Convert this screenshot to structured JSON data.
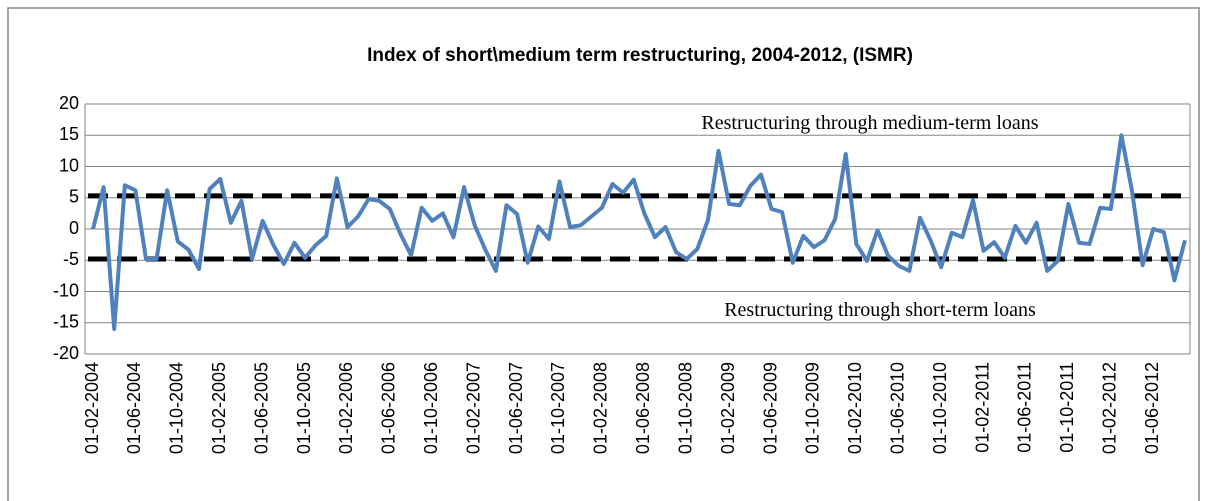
{
  "chart_data": {
    "type": "line",
    "title": "Index of short\\medium term restructuring, 2004-2012, (ISMR)",
    "categories": [
      "01-02-2004",
      null,
      null,
      null,
      "01-06-2004",
      null,
      null,
      null,
      "01-10-2004",
      null,
      null,
      null,
      "01-02-2005",
      null,
      null,
      null,
      "01-06-2005",
      null,
      null,
      null,
      "01-10-2005",
      null,
      null,
      null,
      "01-02-2006",
      null,
      null,
      null,
      "01-06-2006",
      null,
      null,
      null,
      "01-10-2006",
      null,
      null,
      null,
      "01-02-2007",
      null,
      null,
      null,
      "01-06-2007",
      null,
      null,
      null,
      "01-10-2007",
      null,
      null,
      null,
      "01-02-2008",
      null,
      null,
      null,
      "01-06-2008",
      null,
      null,
      null,
      "01-10-2008",
      null,
      null,
      null,
      "01-02-2009",
      null,
      null,
      null,
      "01-06-2009",
      null,
      null,
      null,
      "01-10-2009",
      null,
      null,
      null,
      "01-02-2010",
      null,
      null,
      null,
      "01-06-2010",
      null,
      null,
      null,
      "01-10-2010",
      null,
      null,
      null,
      "01-02-2011",
      null,
      null,
      null,
      "01-06-2011",
      null,
      null,
      null,
      "01-10-2011",
      null,
      null,
      null,
      "01-02-2012",
      null,
      null,
      null,
      "01-06-2012",
      null,
      null,
      null
    ],
    "series": [
      {
        "name": "ISMR",
        "color": "#4f81bd",
        "values": [
          0,
          6.7,
          -16,
          7,
          6.2,
          -4.8,
          -4.8,
          6.2,
          -2,
          -3.3,
          -6.4,
          6.4,
          8,
          1,
          4.5,
          -4.8,
          1.3,
          -2.5,
          -5.6,
          -2.2,
          -4.6,
          -2.6,
          -1.1,
          8.1,
          0.3,
          2,
          4.8,
          4.5,
          3.2,
          -0.8,
          -4.2,
          3.4,
          1.3,
          2.5,
          -1.3,
          6.7,
          0.6,
          -3.3,
          -6.7,
          3.8,
          2.4,
          -5.4,
          0.4,
          -1.6,
          7.6,
          0.3,
          0.6,
          2,
          3.4,
          7.2,
          5.8,
          7.9,
          2.5,
          -1.3,
          0.3,
          -3.7,
          -4.8,
          -3.2,
          1.4,
          12.5,
          4,
          3.8,
          6.9,
          8.7,
          3.2,
          2.7,
          -5.4,
          -1.1,
          -2.9,
          -1.8,
          1.6,
          12,
          -2.4,
          -5.1,
          -0.2,
          -4.3,
          -5.9,
          -6.7,
          1.8,
          -1.8,
          -6.1,
          -0.6,
          -1.3,
          4.6,
          -3.5,
          -2.1,
          -4.6,
          0.5,
          -2.2,
          1,
          -6.7,
          -5.1,
          4,
          -2.2,
          -2.4,
          3.4,
          3.2,
          15,
          6.1,
          -5.8,
          0,
          -0.5,
          -8.2,
          -1.8
        ]
      }
    ],
    "hlines": [
      5.3,
      -4.8
    ],
    "annotations": [
      "Restructuring through medium-term loans",
      "Restructuring through short-term loans"
    ],
    "ylim": [
      -20,
      20
    ],
    "yticks": [
      -20,
      -15,
      -10,
      -5,
      0,
      5,
      10,
      15,
      20
    ],
    "grid": true
  }
}
